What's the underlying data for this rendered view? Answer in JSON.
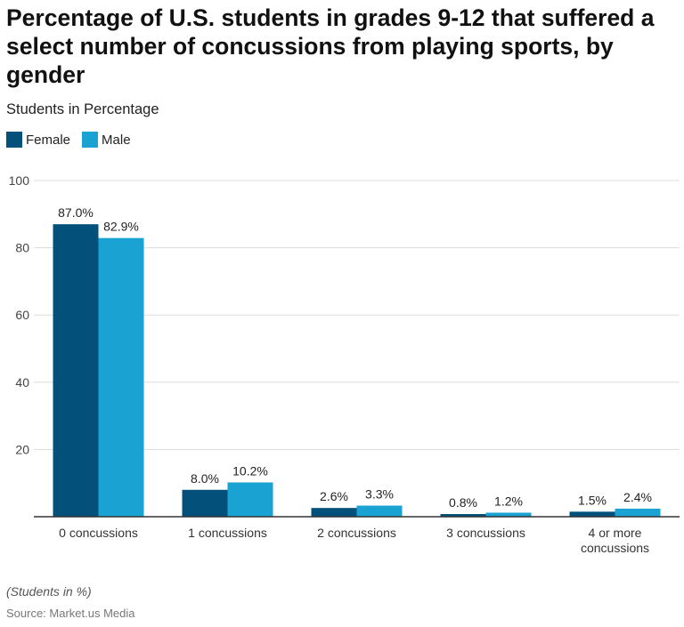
{
  "title": "Percentage of U.S. students in grades 9-12 that suffered a select number of concussions from playing sports, by gender",
  "subtitle": "Students in Percentage",
  "footnote": "(Students in %)",
  "source": "Source: Market.us Media",
  "colors": {
    "female": "#03507a",
    "male": "#1aa2d2",
    "grid": "#dddddd",
    "axis": "#333333"
  },
  "chart_data": {
    "type": "bar",
    "categories": [
      [
        "0 concussions"
      ],
      [
        "1 concussions"
      ],
      [
        "2 concussions"
      ],
      [
        "3 concussions"
      ],
      [
        "4 or more",
        "concussions"
      ]
    ],
    "series": [
      {
        "name": "Female",
        "values": [
          87.0,
          8.0,
          2.6,
          0.8,
          1.5
        ],
        "labels": [
          "87.0%",
          "8.0%",
          "2.6%",
          "0.8%",
          "1.5%"
        ]
      },
      {
        "name": "Male",
        "values": [
          82.9,
          10.2,
          3.3,
          1.2,
          2.4
        ],
        "labels": [
          "82.9%",
          "10.2%",
          "3.3%",
          "1.2%",
          "2.4%"
        ]
      }
    ],
    "ylim": [
      0,
      100
    ],
    "yticks": [
      20,
      40,
      60,
      80,
      100
    ],
    "ytick_labels": [
      "20",
      "40",
      "60",
      "80",
      "100"
    ],
    "grid": true,
    "legend_position": "top-left"
  }
}
